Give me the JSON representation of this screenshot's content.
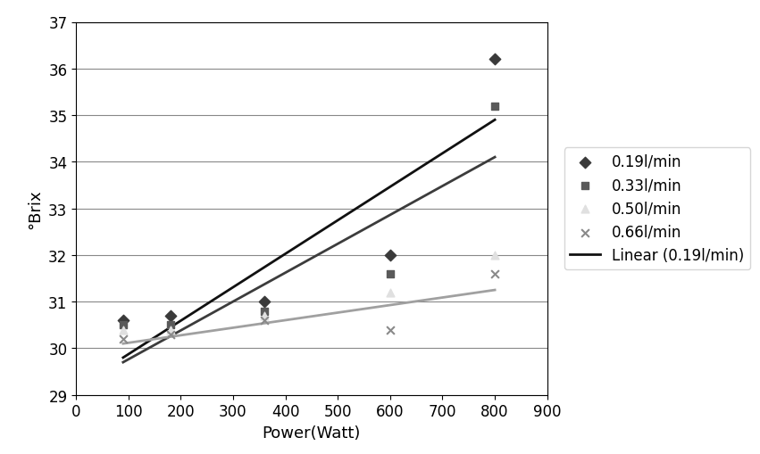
{
  "chart_data": {
    "type": "scatter",
    "x_label": "Power(Watt)",
    "y_label": "°Brix",
    "xlim": [
      0,
      900
    ],
    "xticks": [
      0,
      100,
      200,
      300,
      400,
      500,
      600,
      700,
      800,
      900
    ],
    "ylim": [
      29,
      37
    ],
    "yticks": [
      29,
      30,
      31,
      32,
      33,
      34,
      35,
      36,
      37
    ],
    "grid": true,
    "legend": "right",
    "series": [
      {
        "name": "0.19l/min",
        "type": "scatter",
        "marker": "diamond",
        "color": "#3a3a3a",
        "x": [
          90,
          180,
          360,
          600,
          800
        ],
        "values": [
          30.6,
          30.7,
          31.0,
          32.0,
          36.2
        ]
      },
      {
        "name": "0.33l/min",
        "type": "scatter",
        "marker": "square",
        "color": "#5a5a5a",
        "x": [
          90,
          180,
          360,
          600,
          800
        ],
        "values": [
          30.5,
          30.5,
          30.8,
          31.6,
          35.2
        ]
      },
      {
        "name": "0.50l/min",
        "type": "scatter",
        "marker": "triangle",
        "color": "#e0e0e0",
        "x": [
          90,
          180,
          360,
          600,
          800
        ],
        "values": [
          30.4,
          30.4,
          30.7,
          31.2,
          32.0
        ]
      },
      {
        "name": "0.66l/min",
        "type": "scatter",
        "marker": "x",
        "color": "#8a8a8a",
        "x": [
          90,
          180,
          360,
          600,
          800
        ],
        "values": [
          30.2,
          30.3,
          30.6,
          30.4,
          31.6
        ]
      },
      {
        "name": "Linear (0.19l/min)",
        "type": "line",
        "line_style": "solid",
        "color": "#111111",
        "x": [
          90,
          800
        ],
        "values": [
          29.8,
          34.9
        ]
      },
      {
        "type": "line",
        "line_style": "solid",
        "color": "#3c3c3c",
        "x": [
          90,
          800
        ],
        "values": [
          29.7,
          34.1
        ]
      },
      {
        "type": "line",
        "line_style": "solid",
        "color": "#a0a0a0",
        "x": [
          90,
          800
        ],
        "values": [
          30.1,
          31.25
        ]
      }
    ]
  }
}
